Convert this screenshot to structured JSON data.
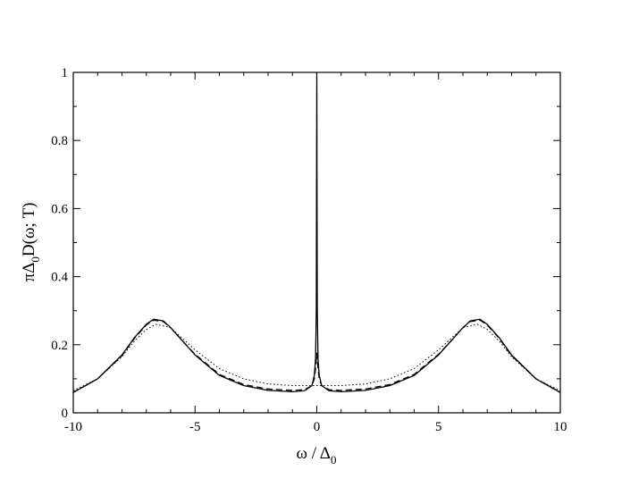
{
  "chart_data": {
    "type": "line",
    "title": "",
    "xlabel": "ω / Δ",
    "xlabel_sub": "0",
    "ylabel_parts": {
      "pre": "πΔ",
      "sub": "0",
      "post": "D(ω; T)"
    },
    "xlim": [
      -10,
      10
    ],
    "ylim": [
      0,
      1
    ],
    "xticks": [
      -10,
      -5,
      0,
      5,
      10
    ],
    "yticks": [
      0,
      0.2,
      0.4,
      0.6,
      0.8,
      1
    ],
    "xtick_labels": [
      "-10",
      "-5",
      "0",
      "5",
      "10"
    ],
    "ytick_labels": [
      "0",
      "0.2",
      "0.4",
      "0.6",
      "0.8",
      "1"
    ],
    "grid": false,
    "legend": "none",
    "series": [
      {
        "style": "solid",
        "color": "#000000",
        "x": [
          -10,
          -9,
          -8,
          -7.5,
          -7,
          -6.7,
          -6.3,
          -6,
          -5.5,
          -5,
          -4,
          -3,
          -2,
          -1,
          -0.5,
          -0.2,
          -0.1,
          -0.05,
          -0.02,
          0,
          0.02,
          0.05,
          0.1,
          0.2,
          0.5,
          1,
          2,
          3,
          4,
          5,
          5.5,
          6,
          6.3,
          6.7,
          7,
          7.5,
          8,
          9,
          10
        ],
        "values": [
          0.06,
          0.1,
          0.17,
          0.22,
          0.26,
          0.275,
          0.27,
          0.25,
          0.21,
          0.17,
          0.11,
          0.08,
          0.066,
          0.062,
          0.065,
          0.08,
          0.11,
          0.16,
          0.3,
          1.0,
          0.3,
          0.16,
          0.11,
          0.08,
          0.065,
          0.062,
          0.066,
          0.08,
          0.11,
          0.17,
          0.21,
          0.25,
          0.27,
          0.275,
          0.26,
          0.22,
          0.17,
          0.1,
          0.06
        ]
      },
      {
        "style": "dashed",
        "color": "#000000",
        "x": [
          -10,
          -9,
          -8,
          -7.5,
          -7,
          -6.7,
          -6.3,
          -6,
          -5.5,
          -5,
          -4,
          -3,
          -2,
          -1,
          -0.5,
          -0.2,
          -0.1,
          -0.05,
          0,
          0.05,
          0.1,
          0.2,
          0.5,
          1,
          2,
          3,
          4,
          5,
          5.5,
          6,
          6.3,
          6.7,
          7,
          7.5,
          8,
          9,
          10
        ],
        "values": [
          0.06,
          0.1,
          0.168,
          0.218,
          0.258,
          0.272,
          0.268,
          0.25,
          0.21,
          0.172,
          0.113,
          0.083,
          0.07,
          0.066,
          0.068,
          0.08,
          0.1,
          0.13,
          0.175,
          0.13,
          0.1,
          0.08,
          0.068,
          0.066,
          0.07,
          0.083,
          0.113,
          0.172,
          0.21,
          0.25,
          0.268,
          0.272,
          0.258,
          0.218,
          0.168,
          0.1,
          0.06
        ]
      },
      {
        "style": "dotted",
        "color": "#000000",
        "x": [
          -10,
          -9,
          -8,
          -7.5,
          -7,
          -6.6,
          -6,
          -5,
          -4,
          -3,
          -2,
          -1,
          -0.5,
          0,
          0.5,
          1,
          2,
          3,
          4,
          5,
          6,
          6.6,
          7,
          7.5,
          8,
          9,
          10
        ],
        "values": [
          0.065,
          0.1,
          0.165,
          0.21,
          0.245,
          0.26,
          0.25,
          0.185,
          0.13,
          0.1,
          0.085,
          0.08,
          0.08,
          0.08,
          0.08,
          0.08,
          0.085,
          0.1,
          0.13,
          0.185,
          0.25,
          0.26,
          0.245,
          0.21,
          0.165,
          0.1,
          0.065
        ]
      }
    ]
  }
}
